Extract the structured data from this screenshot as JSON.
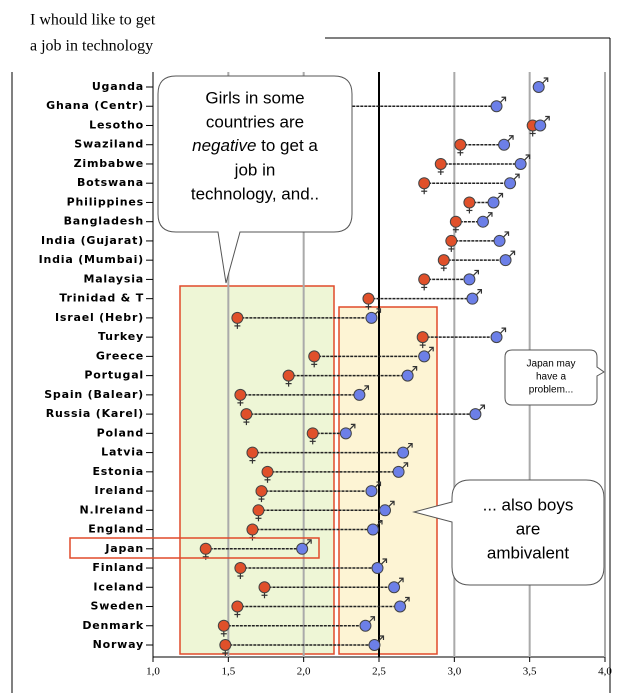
{
  "chart_data": {
    "type": "dumbbell",
    "title_lines": [
      "I whould like to get",
      "a job in technology"
    ],
    "categories": [
      "Uganda",
      "Ghana (Centr)",
      "Lesotho",
      "Swaziland",
      "Zimbabwe",
      "Botswana",
      "Philippines",
      "Bangladesh",
      "India (Gujarat)",
      "India (Mumbai)",
      "Malaysia",
      "Trinidad & T",
      "Israel (Hebr)",
      "Turkey",
      "Greece",
      "Portugal",
      "Spain (Balear)",
      "Russia (Karel)",
      "Poland",
      "Latvia",
      "Estonia",
      "Ireland",
      "N.Ireland",
      "England",
      "Japan",
      "Finland",
      "Iceland",
      "Sweden",
      "Denmark",
      "Norway"
    ],
    "series": [
      {
        "color": "#e0502a",
        "values": [
          null,
          2.19,
          3.52,
          3.04,
          2.91,
          2.8,
          3.1,
          3.01,
          2.98,
          2.93,
          2.8,
          2.43,
          1.56,
          2.79,
          2.07,
          1.9,
          1.58,
          1.62,
          2.06,
          1.66,
          1.76,
          1.72,
          1.7,
          1.66,
          1.35,
          1.58,
          1.74,
          1.56,
          1.47,
          1.48
        ]
      },
      {
        "color": "#6c7fe8",
        "values": [
          3.56,
          3.28,
          3.57,
          3.33,
          3.44,
          3.37,
          3.26,
          3.19,
          3.3,
          3.34,
          3.1,
          3.12,
          2.45,
          3.28,
          2.8,
          2.69,
          2.37,
          3.14,
          2.28,
          2.66,
          2.63,
          2.45,
          2.54,
          2.46,
          1.99,
          2.49,
          2.6,
          2.64,
          2.41,
          2.47
        ]
      }
    ],
    "xlim": [
      1,
      4
    ],
    "xticks": [
      {
        "value": 1,
        "label": "1,0"
      },
      {
        "value": 1.5,
        "label": "1,5"
      },
      {
        "value": 2,
        "label": "2,0"
      },
      {
        "value": 2.5,
        "label": "2,5"
      },
      {
        "value": 3,
        "label": "3,0"
      },
      {
        "value": 3.5,
        "label": "3,5"
      },
      {
        "value": 4,
        "label": "4,0"
      }
    ],
    "grid": true,
    "reference_line": 2.5,
    "annotations": [
      {
        "lines": [
          "Girls in some",
          "countries are",
          "negative",
          "to get a",
          "job in",
          "technology, and.."
        ]
      },
      {
        "lines": [
          "... also boys",
          "are",
          "ambivalent"
        ]
      },
      {
        "lines": [
          "Japan may",
          "have a",
          "problem..."
        ]
      }
    ]
  }
}
